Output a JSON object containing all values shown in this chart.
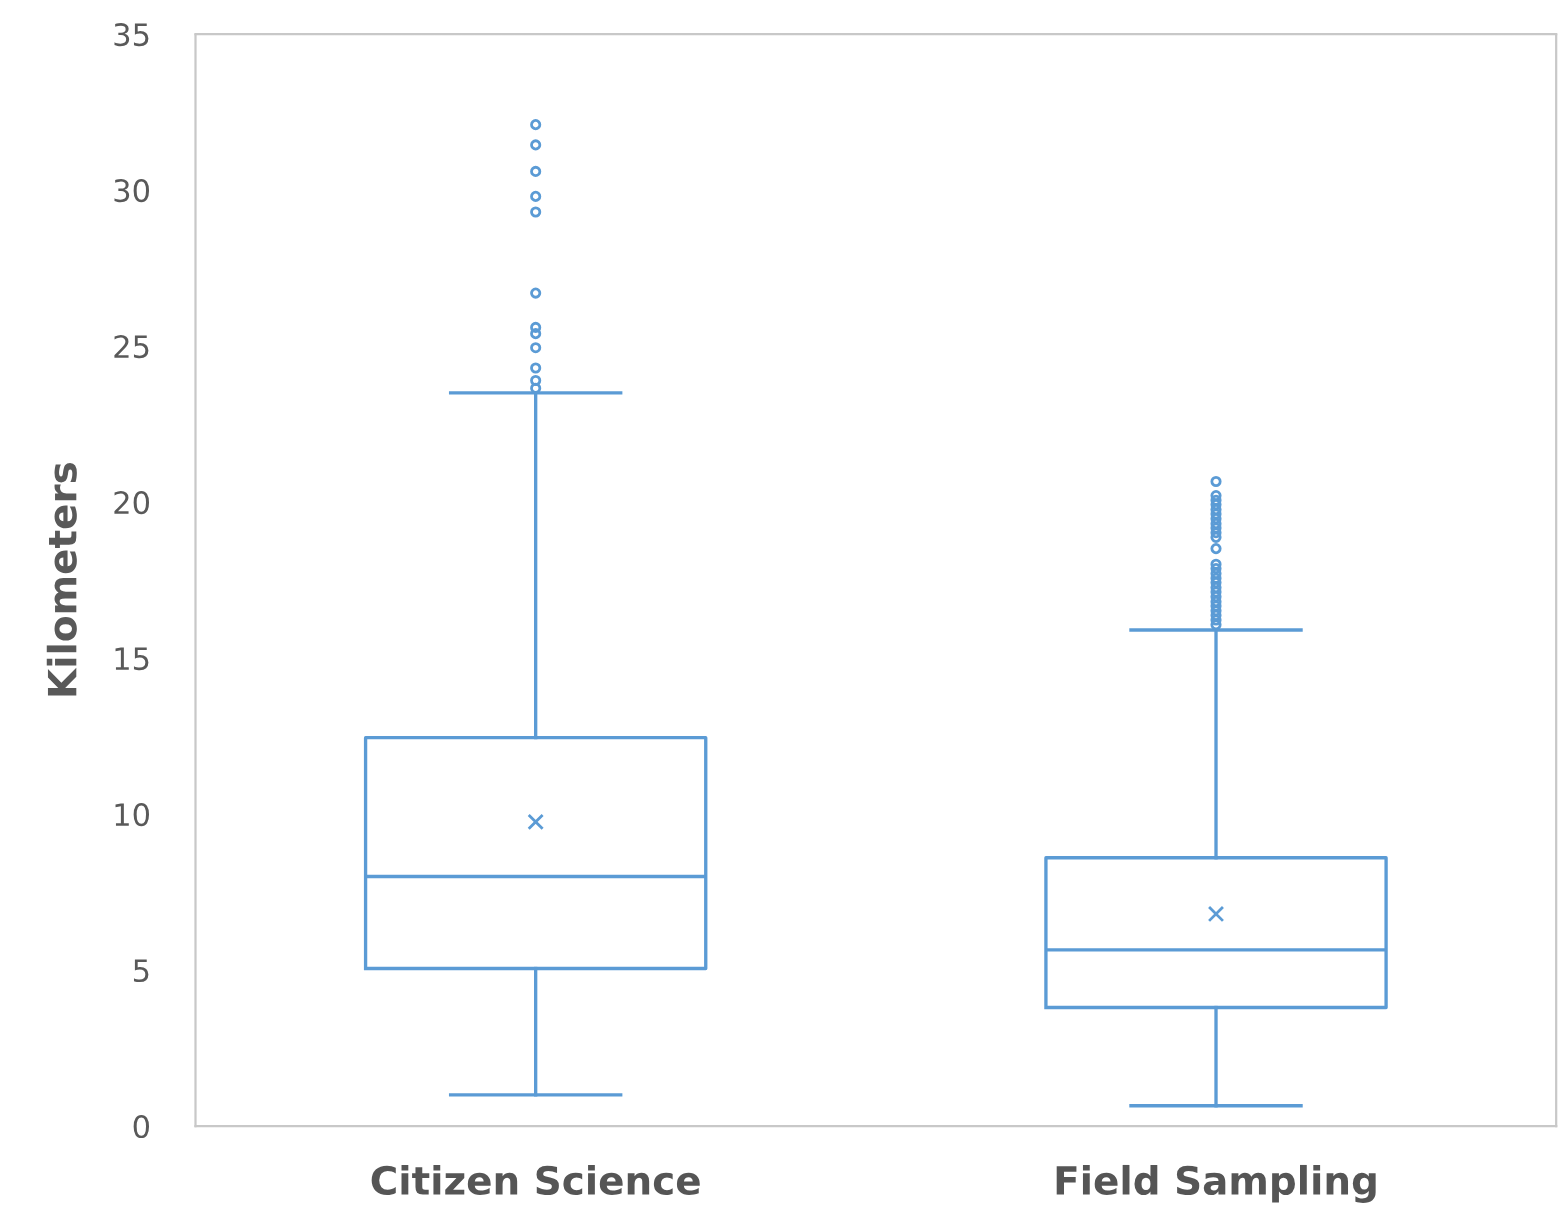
{
  "chart_data": {
    "type": "box",
    "ylabel": "Kilometers",
    "categories": [
      "Citizen Science",
      "Field Sampling"
    ],
    "series": [
      {
        "color": "#5b9bd5",
        "boxes": [
          {
            "low": 1.0,
            "q1": 5.05,
            "median": 8.0,
            "q3": 12.45,
            "high": 23.5,
            "mean": 9.75,
            "outliers": [
              32.1,
              31.45,
              30.6,
              29.8,
              29.3,
              26.7,
              25.6,
              25.4,
              24.95,
              24.3,
              23.9,
              23.65
            ]
          },
          {
            "low": 0.65,
            "q1": 3.8,
            "median": 5.65,
            "q3": 8.6,
            "high": 15.9,
            "mean": 6.8,
            "outliers": [
              20.66,
              20.21,
              20.06,
              19.92,
              19.76,
              19.62,
              19.47,
              19.31,
              19.17,
              19.02,
              18.87,
              18.51,
              18.01,
              17.87,
              17.71,
              17.56,
              17.42,
              17.26,
              17.12,
              16.97,
              16.81,
              16.67,
              16.52,
              16.37,
              16.22,
              16.07
            ]
          }
        ]
      }
    ],
    "ylim": [
      0,
      35
    ],
    "yticks": [
      0,
      5,
      10,
      15,
      20,
      25,
      30,
      35
    ],
    "grid": false,
    "legend": false
  }
}
